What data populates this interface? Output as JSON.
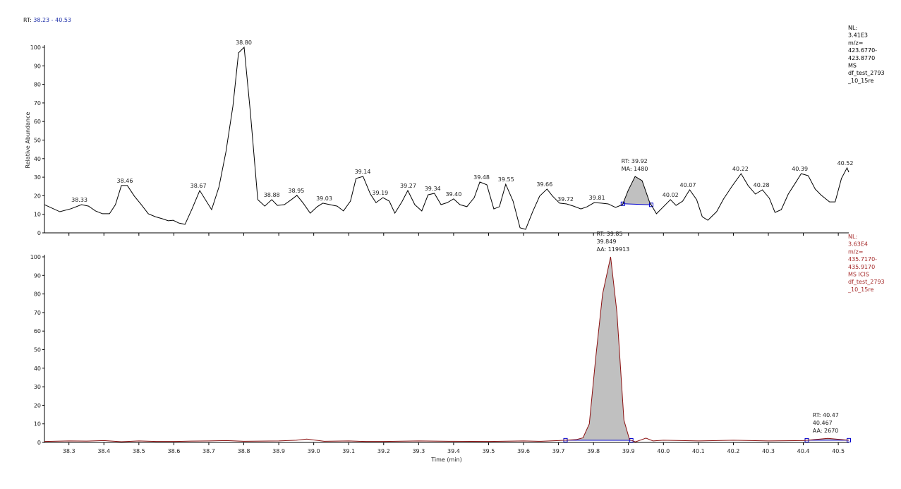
{
  "header": {
    "label": "RT:",
    "range": "38.23 - 40.53"
  },
  "chart_data": [
    {
      "type": "line",
      "ylabel": "Relative Abundance",
      "xlim": [
        38.23,
        40.53
      ],
      "ylim": [
        0,
        100
      ],
      "yticks": [
        0,
        10,
        20,
        30,
        40,
        50,
        60,
        70,
        80,
        90,
        100
      ],
      "series": [
        {
          "color": "#000000",
          "x": [
            38.23,
            38.274,
            38.306,
            38.336,
            38.356,
            38.376,
            38.396,
            38.416,
            38.433,
            38.45,
            38.467,
            38.487,
            38.507,
            38.527,
            38.547,
            38.567,
            38.584,
            38.598,
            38.614,
            38.632,
            38.652,
            38.674,
            38.708,
            38.729,
            38.749,
            38.769,
            38.785,
            38.801,
            38.819,
            38.84,
            38.86,
            38.88,
            38.896,
            38.916,
            38.936,
            38.952,
            38.97,
            38.99,
            39.01,
            39.026,
            39.046,
            39.067,
            39.085,
            39.105,
            39.121,
            39.141,
            39.162,
            39.178,
            39.198,
            39.216,
            39.232,
            39.252,
            39.269,
            39.289,
            39.309,
            39.327,
            39.345,
            39.364,
            39.382,
            39.4,
            39.418,
            39.438,
            39.459,
            39.475,
            39.495,
            39.515,
            39.531,
            39.549,
            39.57,
            39.59,
            39.606,
            39.626,
            39.646,
            39.667,
            39.683,
            39.703,
            39.723,
            39.743,
            39.764,
            39.782,
            39.802,
            39.822,
            39.842,
            39.863,
            39.883,
            39.899,
            39.919,
            39.939,
            39.96,
            39.98,
            40.0,
            40.02,
            40.036,
            40.055,
            40.075,
            40.095,
            40.111,
            40.127,
            40.152,
            40.172,
            40.196,
            40.222,
            40.242,
            40.263,
            40.283,
            40.303,
            40.319,
            40.337,
            40.357,
            40.379,
            40.394,
            40.414,
            40.434,
            40.45,
            40.475,
            40.491,
            40.509,
            40.525,
            40.53
          ],
          "values": [
            15.2,
            11.4,
            13,
            15.2,
            14.4,
            11.8,
            10.3,
            10.3,
            15.2,
            25.5,
            25.5,
            19.8,
            15.2,
            10.3,
            8.7,
            7.6,
            6.5,
            6.8,
            5.3,
            4.6,
            12.9,
            22.8,
            12.5,
            24.7,
            43.7,
            68.4,
            97,
            100,
            64.6,
            17.9,
            14.4,
            17.9,
            14.8,
            15.2,
            17.9,
            20.2,
            16,
            10.6,
            14.1,
            16,
            15.2,
            14.4,
            11.8,
            17.1,
            29.3,
            30.4,
            20.9,
            16.3,
            19,
            17.1,
            10.6,
            16.7,
            22.8,
            15.2,
            11.8,
            20.5,
            21.3,
            15.2,
            16.3,
            18.3,
            15.2,
            14.1,
            19,
            27.4,
            25.9,
            12.9,
            14.1,
            26.2,
            17.1,
            2.7,
            1.9,
            11.4,
            19.8,
            23.6,
            19.8,
            16,
            15.6,
            14.4,
            12.9,
            14.1,
            16.3,
            16,
            15.6,
            13.7,
            15.2,
            22.8,
            30.4,
            28.1,
            16.7,
            10.3,
            14.1,
            17.9,
            14.8,
            17.1,
            23.2,
            17.9,
            8.7,
            6.8,
            11.4,
            18.3,
            25.1,
            31.9,
            25.5,
            20.9,
            23.2,
            18.6,
            11,
            12.5,
            20.9,
            27.4,
            31.9,
            30.8,
            23.6,
            20.5,
            16.7,
            16.7,
            29.3,
            35,
            32.7
          ]
        }
      ],
      "shaded_ranges": [
        [
          39.884,
          39.965
        ]
      ],
      "shade_color": "#c0c0c0",
      "baseline_color": "#0000cc",
      "annotations": [
        {
          "value": 38.33,
          "label": "38.33"
        },
        {
          "value": 38.46,
          "label": "38.46"
        },
        {
          "value": 38.67,
          "label": "38.67"
        },
        {
          "value": 38.8,
          "label": "38.80"
        },
        {
          "value": 38.88,
          "label": "38.88"
        },
        {
          "value": 38.95,
          "label": "38.95"
        },
        {
          "value": 39.03,
          "label": "39.03"
        },
        {
          "value": 39.14,
          "label": "39.14"
        },
        {
          "value": 39.19,
          "label": "39.19"
        },
        {
          "value": 39.27,
          "label": "39.27"
        },
        {
          "value": 39.34,
          "label": "39.34"
        },
        {
          "value": 39.4,
          "label": "39.40"
        },
        {
          "value": 39.48,
          "label": "39.48"
        },
        {
          "value": 39.55,
          "label": "39.55"
        },
        {
          "value": 39.66,
          "label": "39.66"
        },
        {
          "value": 39.72,
          "label": "39.72"
        },
        {
          "value": 39.81,
          "label": "39.81"
        },
        {
          "value": 40.02,
          "label": "40.02"
        },
        {
          "value": 40.07,
          "label": "40.07"
        },
        {
          "value": 40.22,
          "label": "40.22"
        },
        {
          "value": 40.28,
          "label": "40.28"
        },
        {
          "value": 40.39,
          "label": "40.39"
        },
        {
          "value": 40.52,
          "label": "40.52"
        }
      ],
      "peak_notes": [
        {
          "value": 39.92,
          "lines": [
            "RT: 39.92",
            "MA: 1480"
          ]
        }
      ],
      "info_lines": [
        "NL:",
        "3.41E3",
        "m/z=",
        "423.6770-",
        "423.8770",
        "MS",
        "df_test_2793",
        "_10_15re"
      ],
      "info_color": "#000000"
    },
    {
      "type": "line",
      "xlabel": "Time (min)",
      "xlim": [
        38.23,
        40.53
      ],
      "ylim": [
        0,
        100
      ],
      "yticks": [
        0,
        10,
        20,
        30,
        40,
        50,
        60,
        70,
        80,
        90,
        100
      ],
      "xticks": [
        38.3,
        38.4,
        38.5,
        38.6,
        38.7,
        38.8,
        38.9,
        {
          "value": 39,
          "label": "39.0"
        },
        39.1,
        39.2,
        39.3,
        39.4,
        39.5,
        39.6,
        39.7,
        39.8,
        39.9,
        {
          "value": 40,
          "label": "40.0"
        },
        40.1,
        40.2,
        40.3,
        40.4,
        40.5
      ],
      "series": [
        {
          "color": "#8b1010",
          "x": [
            38.23,
            38.3,
            38.35,
            38.4,
            38.45,
            38.5,
            38.55,
            38.6,
            38.65,
            38.7,
            38.75,
            38.8,
            38.85,
            38.9,
            38.95,
            38.98,
            39.03,
            39.1,
            39.15,
            39.2,
            39.3,
            39.4,
            39.5,
            39.6,
            39.65,
            39.7,
            39.75,
            39.77,
            39.788,
            39.806,
            39.826,
            39.849,
            39.867,
            39.887,
            39.903,
            39.92,
            39.95,
            39.97,
            40.0,
            40.1,
            40.2,
            40.3,
            40.4,
            40.47,
            40.53
          ],
          "values": [
            0.5,
            0.8,
            0.7,
            1,
            0.4,
            0.8,
            0.5,
            0.5,
            0.7,
            0.8,
            1,
            0.6,
            0.7,
            0.8,
            1.2,
            1.8,
            0.6,
            0.8,
            0.5,
            0.5,
            0.8,
            0.6,
            0.5,
            0.8,
            0.6,
            1,
            1.5,
            2.5,
            10,
            45,
            80,
            100,
            70,
            12,
            1.5,
            0.3,
            2.3,
            0.8,
            1.2,
            0.8,
            1.2,
            0.8,
            1,
            2.2,
            1.2
          ]
        }
      ],
      "shaded_ranges": [
        [
          39.72,
          39.908
        ],
        [
          40.41,
          40.53
        ]
      ],
      "shade_color": "#c0c0c0",
      "baseline_color": "#0000cc",
      "peak_notes": [
        {
          "value": 39.849,
          "lines": [
            "RT: 39.85",
            "39.849",
            "AA: 119913"
          ]
        },
        {
          "value": 40.467,
          "lines": [
            "RT: 40.47",
            "40.467",
            "AA: 2670"
          ]
        }
      ],
      "info_lines": [
        "NL:",
        "3.63E4",
        "m/z=",
        "435.7170-",
        "435.9170",
        "MS  ICIS",
        "df_test_2793",
        "_10_15re"
      ],
      "info_color": "#a52a2a"
    }
  ]
}
